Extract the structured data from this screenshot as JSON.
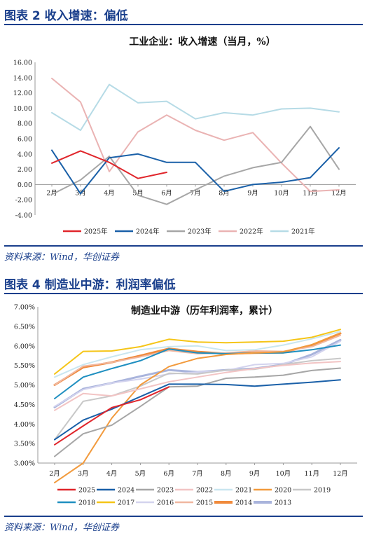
{
  "figure1": {
    "heading": "图表 2   收入增速：偏低",
    "source": "资料来源：Wind，华创证券",
    "colors": {
      "2025年": "#e0252b",
      "2024年": "#1a60a8",
      "2023年": "#a6a6a6",
      "2022年": "#eab3b3",
      "2021年": "#b6dbe6"
    }
  },
  "figure2": {
    "heading": "图表 4   制造业中游：利润率偏低",
    "source": "资料来源：Wind，华创证券",
    "colors": {
      "2025": "#e0252b",
      "2024": "#1a60a8",
      "2023": "#a6a6a6",
      "2022": "#f2c4c4",
      "2021": "#c9e6f0",
      "2020": "#f29a3c",
      "2019": "#c8c8c8",
      "2018": "#1f8fc0",
      "2017": "#f5c518",
      "2016": "#d3d3ee",
      "2015": "#f0b7a0",
      "2014": "#f08a3c",
      "2013": "#a9b4dc"
    },
    "widths": {
      "2014": 3,
      "2013": 3
    }
  },
  "chart_data": [
    {
      "type": "line",
      "title": "工业企业：收入增速（当月，%）",
      "categories": [
        "2月",
        "3月",
        "4月",
        "5月",
        "6月",
        "7月",
        "8月",
        "9月",
        "10月",
        "11月",
        "12月"
      ],
      "ylim": [
        -4,
        16
      ],
      "yticks": [
        "-4.00",
        "-2.00",
        "0.00",
        "2.00",
        "4.00",
        "6.00",
        "8.00",
        "10.00",
        "12.00",
        "14.00",
        "16.00"
      ],
      "legend_position": "bottom",
      "series": [
        {
          "name": "2025年",
          "values": [
            2.8,
            4.4,
            2.9,
            0.8,
            1.6,
            null,
            null,
            null,
            null,
            null,
            null
          ]
        },
        {
          "name": "2024年",
          "values": [
            4.5,
            -1.2,
            3.5,
            4.0,
            2.9,
            2.9,
            -0.9,
            0.0,
            0.3,
            0.9,
            4.8
          ]
        },
        {
          "name": "2023年",
          "values": [
            -1.3,
            0.6,
            3.7,
            -1.4,
            -2.6,
            -0.7,
            1.1,
            2.2,
            2.9,
            7.6,
            2.0
          ]
        },
        {
          "name": "2022年",
          "values": [
            13.9,
            10.8,
            1.7,
            6.9,
            9.1,
            7.1,
            5.8,
            6.8,
            2.8,
            -0.9,
            -0.7
          ]
        },
        {
          "name": "2021年",
          "values": [
            9.4,
            7.1,
            13.1,
            10.7,
            10.9,
            8.6,
            9.4,
            9.1,
            9.9,
            10.0,
            9.5
          ]
        }
      ]
    },
    {
      "type": "line",
      "title": "制造业中游（历年利润率，累计）",
      "categories": [
        "2月",
        "3月",
        "4月",
        "5月",
        "6月",
        "7月",
        "8月",
        "9月",
        "10月",
        "11月",
        "12月"
      ],
      "ylim": [
        3.0,
        7.0
      ],
      "yticks": [
        "3.00%",
        "3.50%",
        "4.00%",
        "4.50%",
        "5.00%",
        "5.50%",
        "6.00%",
        "6.50%",
        "7.00%"
      ],
      "legend_position": "bottom",
      "series": [
        {
          "name": "2025",
          "values": [
            3.47,
            3.95,
            4.42,
            4.62,
            4.95,
            null,
            null,
            null,
            null,
            null,
            null
          ]
        },
        {
          "name": "2024",
          "values": [
            3.6,
            4.1,
            4.38,
            4.7,
            5.02,
            5.02,
            5.01,
            4.97,
            5.02,
            5.07,
            5.13
          ]
        },
        {
          "name": "2023",
          "values": [
            3.17,
            3.75,
            3.97,
            4.45,
            4.95,
            4.97,
            5.17,
            5.2,
            5.25,
            5.37,
            5.43
          ]
        },
        {
          "name": "2022",
          "values": [
            4.35,
            4.78,
            4.72,
            4.9,
            5.08,
            5.2,
            5.32,
            5.42,
            5.5,
            5.56,
            5.6
          ]
        },
        {
          "name": "2021",
          "values": [
            5.2,
            5.52,
            5.72,
            5.9,
            5.98,
            6.0,
            5.88,
            5.9,
            6.02,
            6.18,
            6.37
          ]
        },
        {
          "name": "2020",
          "values": [
            2.5,
            3.0,
            4.15,
            5.0,
            5.47,
            5.68,
            5.78,
            5.82,
            5.85,
            6.03,
            6.33
          ]
        },
        {
          "name": "2019",
          "values": [
            3.6,
            4.58,
            4.72,
            4.97,
            5.3,
            5.28,
            5.38,
            5.4,
            5.52,
            5.62,
            5.68
          ]
        },
        {
          "name": "2018",
          "values": [
            4.65,
            5.2,
            5.42,
            5.62,
            5.92,
            5.82,
            5.8,
            5.82,
            5.82,
            5.9,
            6.02
          ]
        },
        {
          "name": "2017",
          "values": [
            5.28,
            5.86,
            5.87,
            5.98,
            6.17,
            6.1,
            6.08,
            6.1,
            6.12,
            6.22,
            6.42
          ]
        },
        {
          "name": "2016",
          "values": [
            4.45,
            4.88,
            5.05,
            5.15,
            5.28,
            5.33,
            5.37,
            5.52,
            5.55,
            5.72,
            6.12
          ]
        },
        {
          "name": "2015",
          "values": [
            5.0,
            5.48,
            5.58,
            5.72,
            5.88,
            5.8,
            5.82,
            5.87,
            5.86,
            5.98,
            6.27
          ]
        },
        {
          "name": "2014",
          "values": [
            5.0,
            5.45,
            5.58,
            5.75,
            5.93,
            5.85,
            5.8,
            5.82,
            5.83,
            6.02,
            6.32
          ]
        },
        {
          "name": "2013",
          "values": [
            4.43,
            4.9,
            5.05,
            5.22,
            5.38,
            5.33,
            5.38,
            5.42,
            5.52,
            5.78,
            6.15
          ]
        }
      ]
    }
  ]
}
